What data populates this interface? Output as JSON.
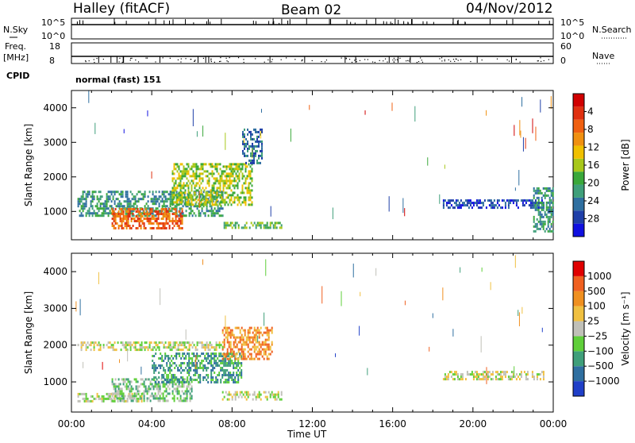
{
  "header": {
    "title": "Halley (fitACF)",
    "beam": "Beam 02",
    "date": "04/Nov/2012"
  },
  "top_panels": {
    "nsky_label": "N.Sky",
    "nsky_ticks": [
      "10^5",
      "10^0"
    ],
    "nsearch_label": "N.Search",
    "nsearch_ticks": [
      "10^5",
      "10^0"
    ],
    "freq_label": "Freq.",
    "freq_unit": "[MHz]",
    "freq_ticks": [
      "18",
      "8"
    ],
    "nave_label": "Nave",
    "nave_ticks": [
      "60",
      "0"
    ],
    "cpid_label": "CPID",
    "cpid_value": "normal (fast) 151"
  },
  "chart_data": [
    {
      "type": "heatmap",
      "name": "power",
      "ylabel": "Slant Range [km]",
      "xlabel": "Time UT",
      "xlim_hours": [
        0,
        24
      ],
      "ylim": [
        180,
        4500
      ],
      "yticks": [
        "1000",
        "2000",
        "3000",
        "4000"
      ],
      "xticks": [
        "00:00",
        "04:00",
        "08:00",
        "12:00",
        "16:00",
        "20:00",
        "00:00"
      ],
      "colorbar": {
        "label": "Power [dB]",
        "ticks": [
          "4",
          "8",
          "12",
          "16",
          "20",
          "24",
          "28"
        ],
        "colors": [
          "#1010e0",
          "#1f3fa8",
          "#2f6fa0",
          "#3f9f7a",
          "#3aa83a",
          "#a8c81a",
          "#f0c000",
          "#f09010",
          "#f06010",
          "#e03010",
          "#d00000"
        ]
      },
      "regions": [
        {
          "t": [
            0.3,
            7.5
          ],
          "r": [
            900,
            1600
          ],
          "level": 3
        },
        {
          "t": [
            2.0,
            5.5
          ],
          "r": [
            500,
            1100
          ],
          "level": 8
        },
        {
          "t": [
            5.0,
            9.0
          ],
          "r": [
            1200,
            2400
          ],
          "level": 5
        },
        {
          "t": [
            7.5,
            10.5
          ],
          "r": [
            500,
            700
          ],
          "level": 4
        },
        {
          "t": [
            8.5,
            9.5
          ],
          "r": [
            2400,
            3400
          ],
          "level": 2
        },
        {
          "t": [
            18.5,
            23.5
          ],
          "r": [
            1100,
            1350
          ],
          "level": 1
        },
        {
          "t": [
            23.0,
            24.0
          ],
          "r": [
            400,
            1700
          ],
          "level": 3
        }
      ]
    },
    {
      "type": "heatmap",
      "name": "velocity",
      "ylabel": "Slant Range [km]",
      "xlabel": "Time UT",
      "xlim_hours": [
        0,
        24
      ],
      "ylim": [
        180,
        4500
      ],
      "yticks": [
        "1000",
        "2000",
        "3000",
        "4000"
      ],
      "xticks": [
        "00:00",
        "04:00",
        "08:00",
        "12:00",
        "16:00",
        "20:00",
        "00:00"
      ],
      "colorbar": {
        "label": "Velocity [m s⁻¹]",
        "ticks": [
          "1000",
          "500",
          "100",
          "25",
          "−25",
          "−100",
          "−500",
          "−1000"
        ],
        "colors": [
          "#1f3fc8",
          "#2f6fa0",
          "#3f9f7a",
          "#5fcf3a",
          "#c0c0b8",
          "#f0c040",
          "#f09020",
          "#f06020",
          "#e00000"
        ]
      },
      "regions": [
        {
          "t": [
            0.3,
            3.5
          ],
          "r": [
            450,
            700
          ],
          "level": 4
        },
        {
          "t": [
            2.0,
            6.0
          ],
          "r": [
            500,
            1100
          ],
          "level": 3
        },
        {
          "t": [
            4.0,
            8.5
          ],
          "r": [
            1000,
            1800
          ],
          "level": 2
        },
        {
          "t": [
            7.5,
            10.0
          ],
          "r": [
            1600,
            2500
          ],
          "level": 6
        },
        {
          "t": [
            7.5,
            10.5
          ],
          "r": [
            500,
            750
          ],
          "level": 4
        },
        {
          "t": [
            0.3,
            7.5
          ],
          "r": [
            1900,
            2100
          ],
          "level": 4
        },
        {
          "t": [
            18.5,
            23.5
          ],
          "r": [
            1100,
            1300
          ],
          "level": 4
        }
      ]
    }
  ]
}
